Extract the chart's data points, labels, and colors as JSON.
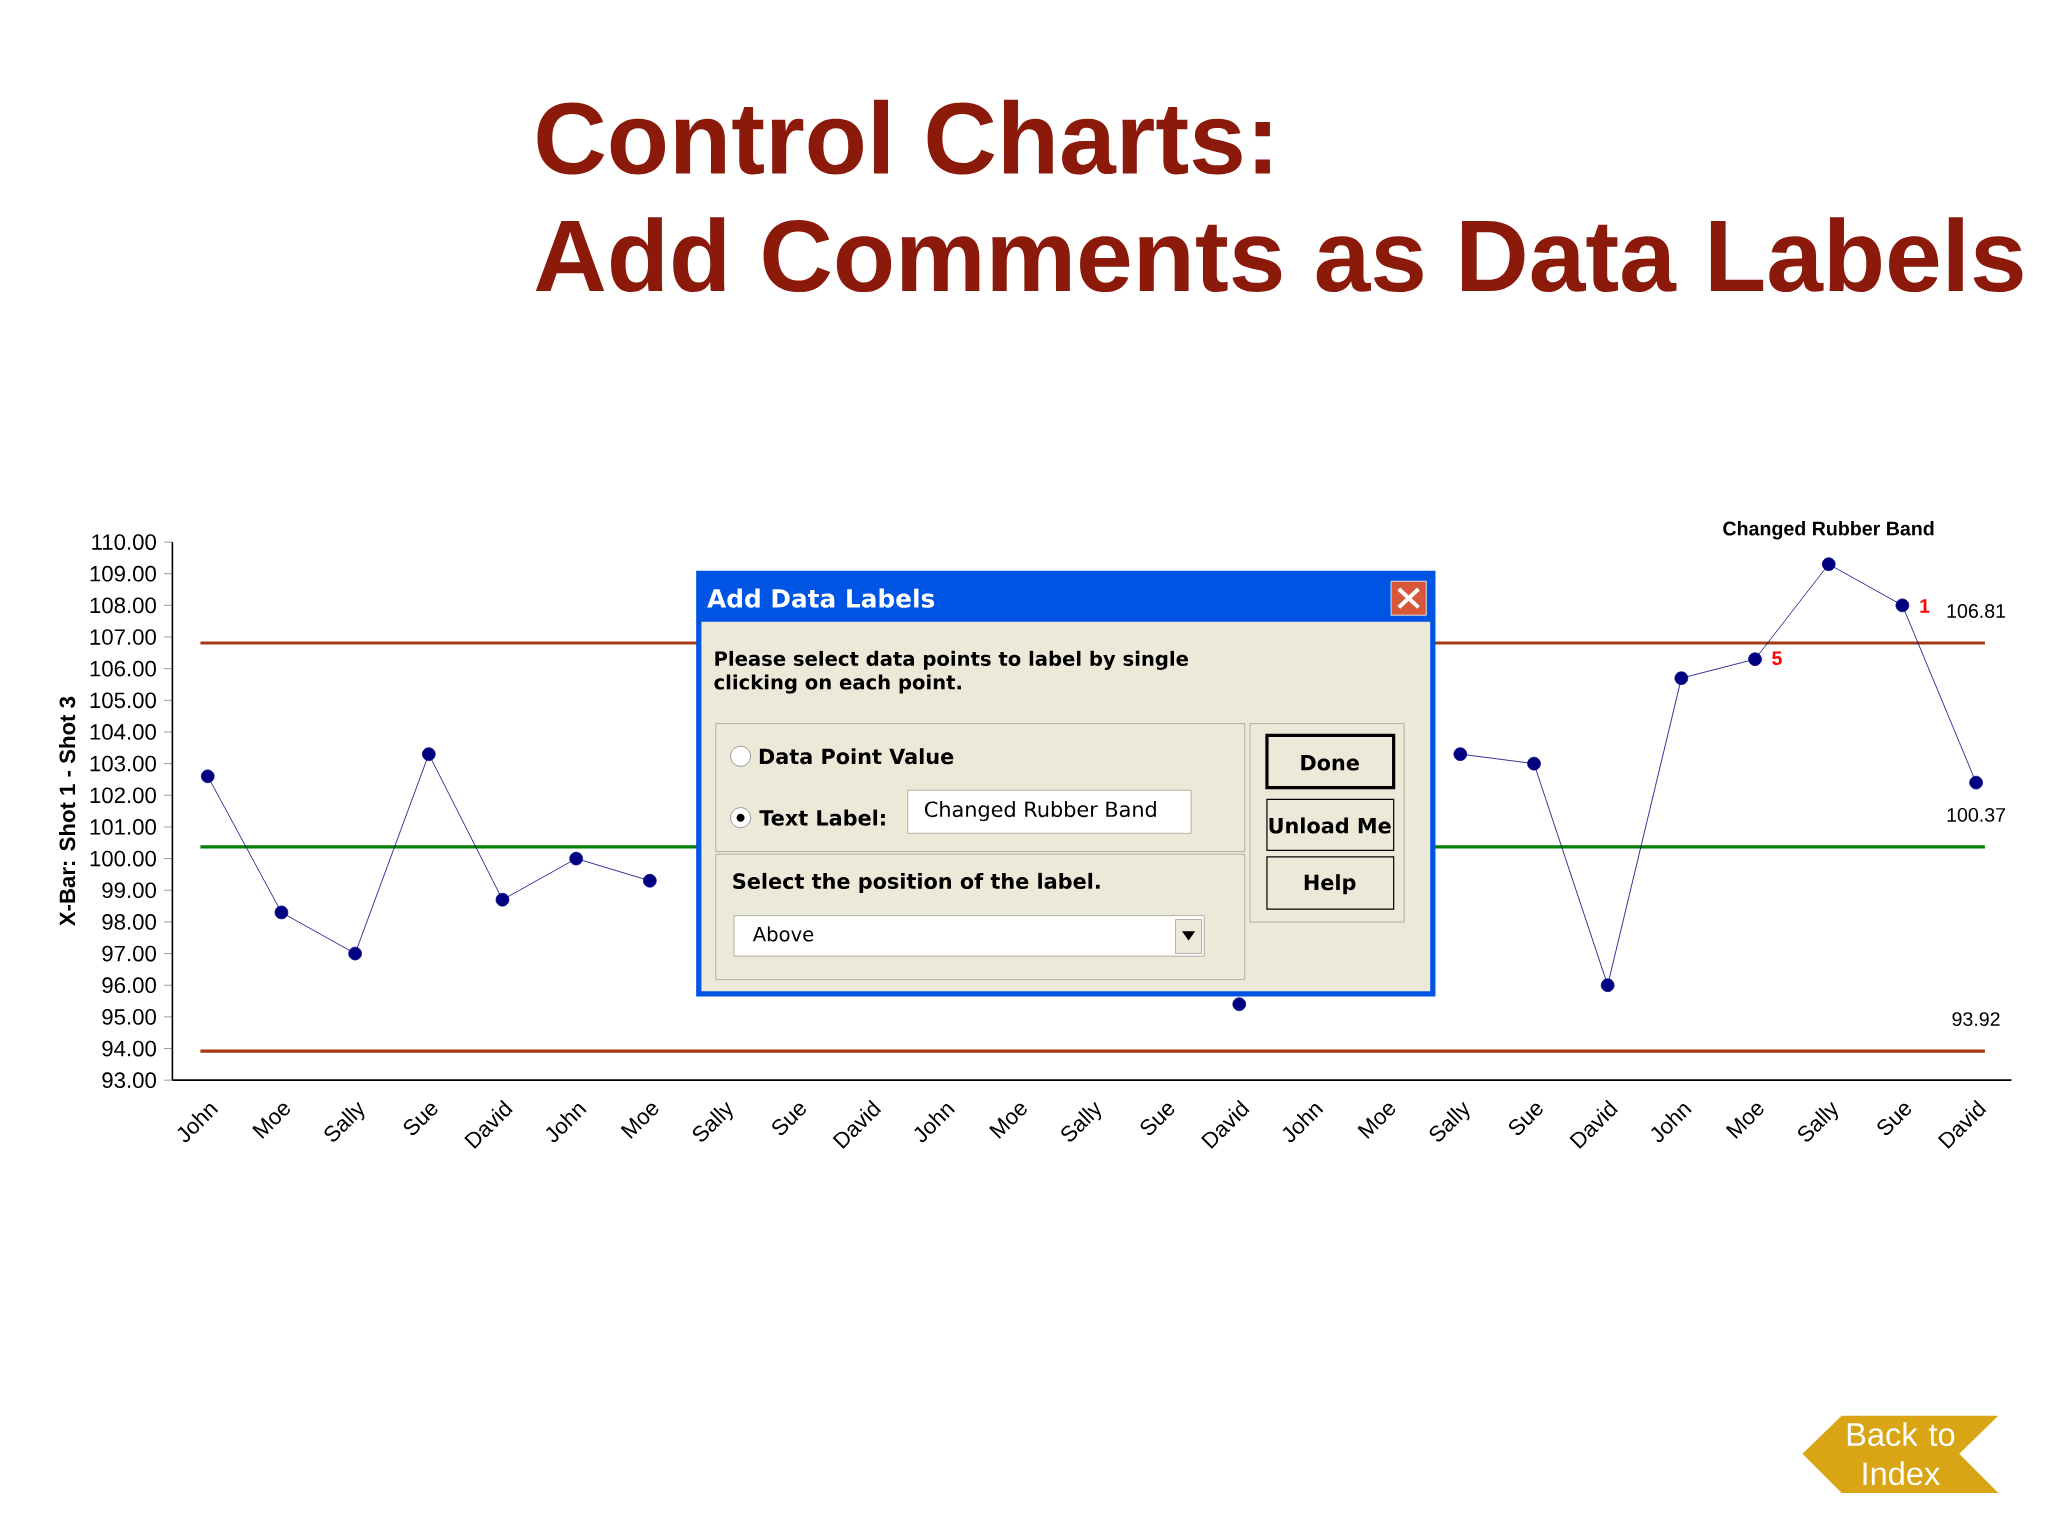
{
  "chart_data": {
    "type": "line",
    "title": "Control Charts:",
    "subtitle": "Add Comments as Data Labels",
    "ylabel": "X-Bar: Shot 1 - Shot 3",
    "categories": [
      "John",
      "Moe",
      "Sally",
      "Sue",
      "David",
      "John",
      "Moe",
      "Sally",
      "Sue",
      "David",
      "John",
      "Moe",
      "Sally",
      "Sue",
      "David",
      "John",
      "Moe",
      "Sally",
      "Sue",
      "David",
      "John",
      "Moe",
      "Sally",
      "Sue",
      "David"
    ],
    "series": [
      {
        "color": "#000080",
        "values": [
          102.6,
          98.3,
          97.0,
          103.3,
          98.7,
          100.0,
          99.3,
          null,
          null,
          null,
          null,
          null,
          null,
          null,
          95.4,
          null,
          null,
          103.3,
          103.0,
          96.0,
          105.7,
          106.3,
          109.3,
          108.0,
          102.4
        ]
      }
    ],
    "marker": "circle",
    "line_style": "solid",
    "ylim": [
      93,
      110
    ],
    "yticks": [
      {
        "value": 93,
        "label": "93.00"
      },
      {
        "value": 94,
        "label": "94.00"
      },
      {
        "value": 95,
        "label": "95.00"
      },
      {
        "value": 96,
        "label": "96.00"
      },
      {
        "value": 97,
        "label": "97.00"
      },
      {
        "value": 98,
        "label": "98.00"
      },
      {
        "value": 99,
        "label": "99.00"
      },
      {
        "value": 100,
        "label": "100.00"
      },
      {
        "value": 101,
        "label": "101.00"
      },
      {
        "value": 102,
        "label": "102.00"
      },
      {
        "value": 103,
        "label": "103.00"
      },
      {
        "value": 104,
        "label": "104.00"
      },
      {
        "value": 105,
        "label": "105.00"
      },
      {
        "value": 106,
        "label": "106.00"
      },
      {
        "value": 107,
        "label": "107.00"
      },
      {
        "value": 108,
        "label": "108.00"
      },
      {
        "value": 109,
        "label": "109.00"
      },
      {
        "value": 110,
        "label": "110.00"
      }
    ],
    "ref_lines": [
      {
        "axis": "y",
        "value": 106.81,
        "label": "106.81",
        "color": "#a33a12"
      },
      {
        "axis": "y",
        "value": 100.37,
        "label": "100.37",
        "color": "#008000"
      },
      {
        "axis": "y",
        "value": 93.92,
        "label": "93.92",
        "color": "#a33a12"
      }
    ],
    "annotations": [
      "Add Data Labels",
      "Please select data points to label by single clicking on each point.",
      "Data Point Value",
      "Text Label:",
      "Changed Rubber Band",
      "Select the position of the label.",
      "Above",
      "Done",
      "Unload Me",
      "Help",
      "Back to Index",
      "Changed Rubber Band",
      "5",
      "1"
    ]
  }
}
